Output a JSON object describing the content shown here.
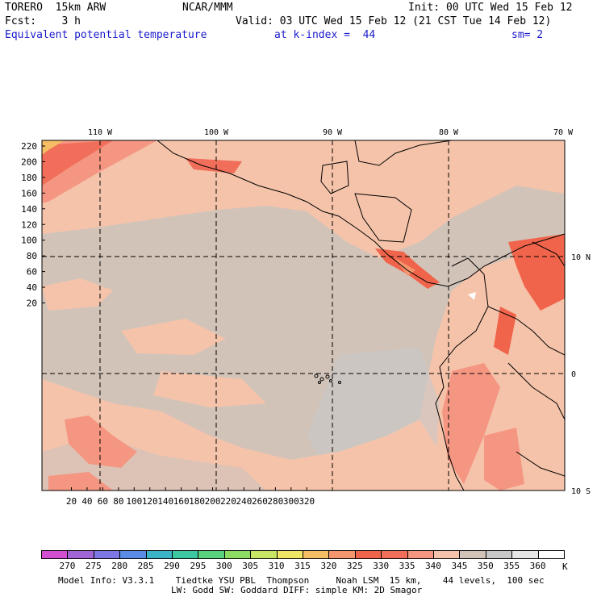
{
  "header": {
    "model": "TORERO  15km ARW",
    "org": "NCAR/MMM",
    "init": "Init: 00 UTC Wed 15 Feb 12",
    "fcst": "Fcst:    3 h",
    "valid": "Valid: 03 UTC Wed 15 Feb 12 (21 CST Tue 14 Feb 12)",
    "field": "Equivalent potential temperature",
    "level": "at k-index =  44",
    "smoothing": "sm= 2"
  },
  "map": {
    "lon_labels": [
      "110 W",
      "100 W",
      "90 W",
      "80 W",
      "70 W"
    ],
    "lat_labels": [
      "10 N",
      "0",
      "10 S"
    ],
    "y_ticks": [
      "220",
      "200",
      "180",
      "160",
      "140",
      "120",
      "100",
      "80",
      "60",
      "40",
      "20"
    ],
    "x_ticks": [
      "20",
      "40",
      "60",
      "80",
      "100",
      "120",
      "140",
      "160",
      "180",
      "200",
      "220",
      "240",
      "260",
      "280",
      "300",
      "320"
    ]
  },
  "colorbar": {
    "labels": [
      "270",
      "275",
      "280",
      "285",
      "290",
      "295",
      "300",
      "305",
      "310",
      "315",
      "320",
      "325",
      "330",
      "335",
      "340",
      "345",
      "350",
      "355",
      "360"
    ],
    "unit": "K",
    "colors": [
      "#d24fd2",
      "#a064d6",
      "#7d78e6",
      "#5a8ce6",
      "#3cb4c8",
      "#3cc8a0",
      "#5ad27d",
      "#8cdc64",
      "#c8e664",
      "#f0e664",
      "#f5be64",
      "#f5966e",
      "#f0644b",
      "#f06e5a",
      "#f59682",
      "#f5c3aa",
      "#d2c3b9",
      "#c8c8c8",
      "#e6e6e6",
      "#ffffff"
    ]
  },
  "footer": {
    "line1": "Model Info: V3.3.1    Tiedtke YSU PBL  Thompson     Noah LSM  15 km,    44 levels,  100 sec",
    "line2": "LW: Godd SW: Goddard DIFF: simple KM: 2D Smagor"
  }
}
